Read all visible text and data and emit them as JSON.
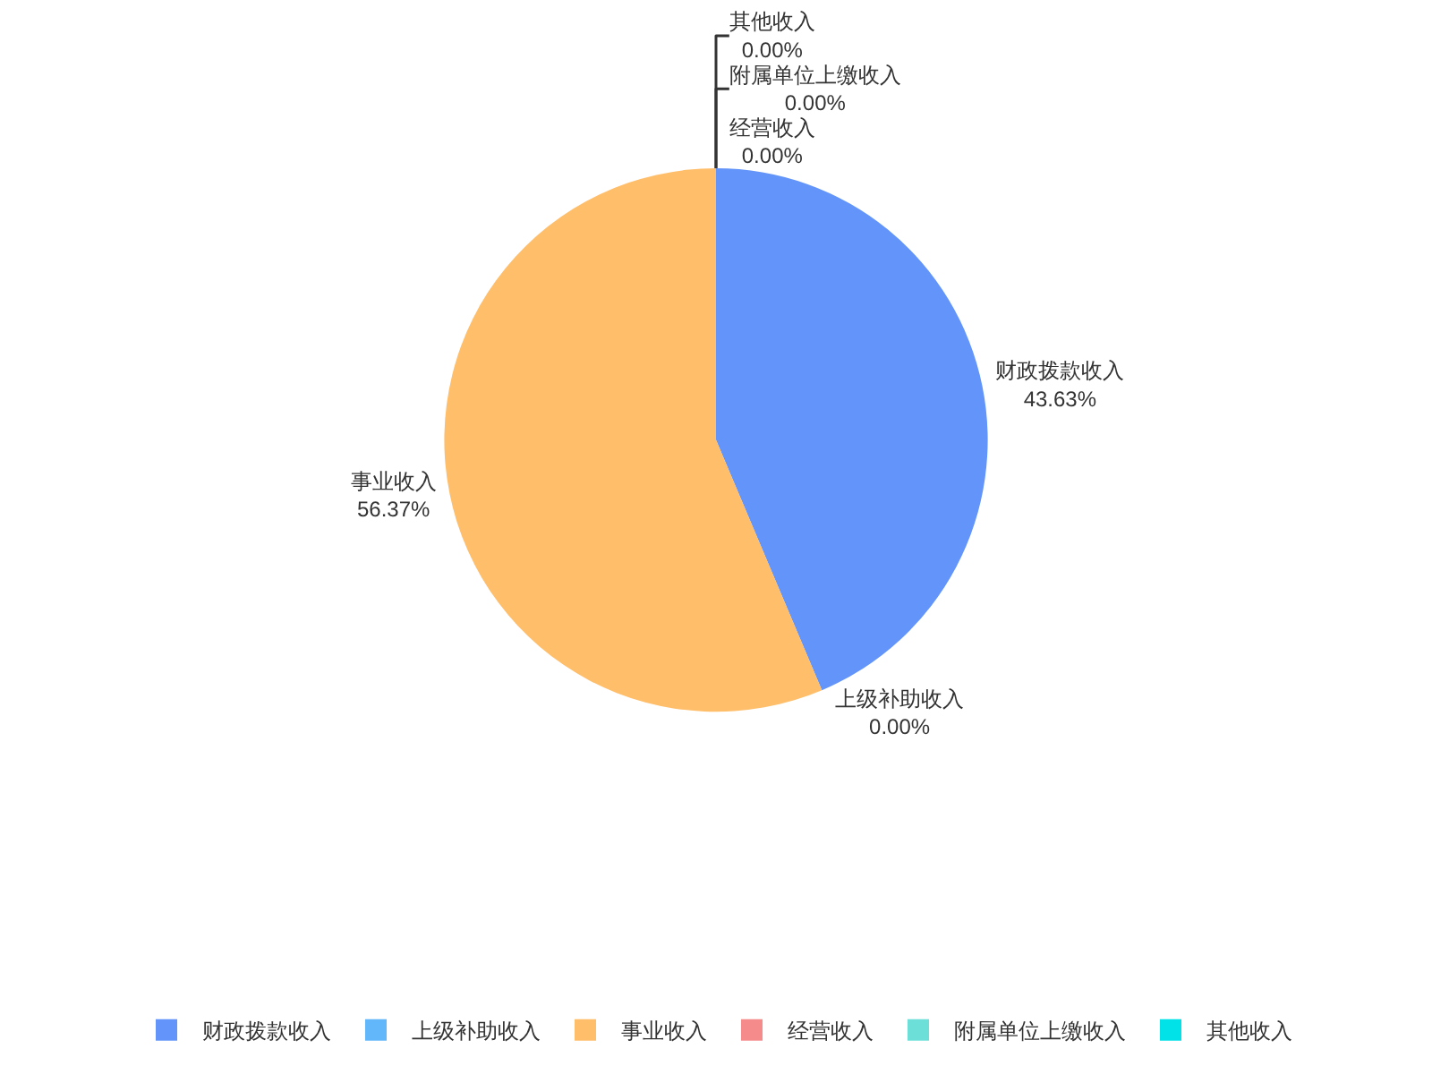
{
  "chart_data": {
    "type": "pie",
    "categories": [
      "财政拨款收入",
      "上级补助收入",
      "事业收入",
      "经营收入",
      "附属单位上缴收入",
      "其他收入"
    ],
    "values": [
      43.63,
      0.0,
      56.37,
      0.0,
      0.0,
      0.0
    ],
    "value_labels": [
      "43.63%",
      "0.00%",
      "56.37%",
      "0.00%",
      "0.00%",
      "0.00%"
    ],
    "colors": [
      "#6394f9",
      "#62b6fa",
      "#ffbe6a",
      "#f58b8b",
      "#6ddfd9",
      "#00e1e8"
    ],
    "legend": "bottom"
  }
}
